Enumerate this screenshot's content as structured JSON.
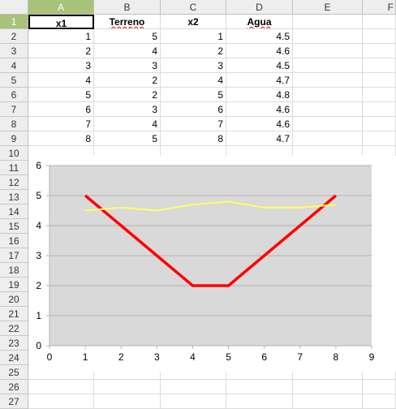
{
  "columns": [
    "A",
    "B",
    "C",
    "D",
    "E",
    "F"
  ],
  "rows": [
    "1",
    "2",
    "3",
    "4",
    "5",
    "6",
    "7",
    "8",
    "9",
    "10",
    "11",
    "12",
    "13",
    "14",
    "15",
    "16",
    "17",
    "18",
    "19",
    "20",
    "21",
    "22",
    "23",
    "24",
    "25",
    "26",
    "27"
  ],
  "headers": [
    "x1",
    "Terreno",
    "x2",
    "Agua"
  ],
  "table": [
    [
      "1",
      "5",
      "1",
      "4.5"
    ],
    [
      "2",
      "4",
      "2",
      "4.6"
    ],
    [
      "3",
      "3",
      "3",
      "4.5"
    ],
    [
      "4",
      "2",
      "4",
      "4.7"
    ],
    [
      "5",
      "2",
      "5",
      "4.8"
    ],
    [
      "6",
      "3",
      "6",
      "4.6"
    ],
    [
      "7",
      "4",
      "7",
      "4.6"
    ],
    [
      "8",
      "5",
      "8",
      "4.7"
    ]
  ],
  "chart_data": {
    "type": "line",
    "xlim": [
      0,
      9
    ],
    "ylim": [
      0,
      6
    ],
    "xticks": [
      "0",
      "1",
      "2",
      "3",
      "4",
      "5",
      "6",
      "7",
      "8",
      "9"
    ],
    "yticks": [
      "0",
      "1",
      "2",
      "3",
      "4",
      "5",
      "6"
    ],
    "grid": true,
    "background": "#d9d9d9",
    "series": [
      {
        "x": [
          1,
          2,
          3,
          4,
          5,
          6,
          7,
          8
        ],
        "y": [
          5,
          4,
          3,
          2,
          2,
          3,
          4,
          5
        ],
        "color": "#ff0000"
      },
      {
        "x": [
          1,
          2,
          3,
          4,
          5,
          6,
          7,
          8
        ],
        "y": [
          4.5,
          4.6,
          4.5,
          4.7,
          4.8,
          4.6,
          4.6,
          4.7
        ],
        "color": "#ffff66"
      }
    ]
  }
}
